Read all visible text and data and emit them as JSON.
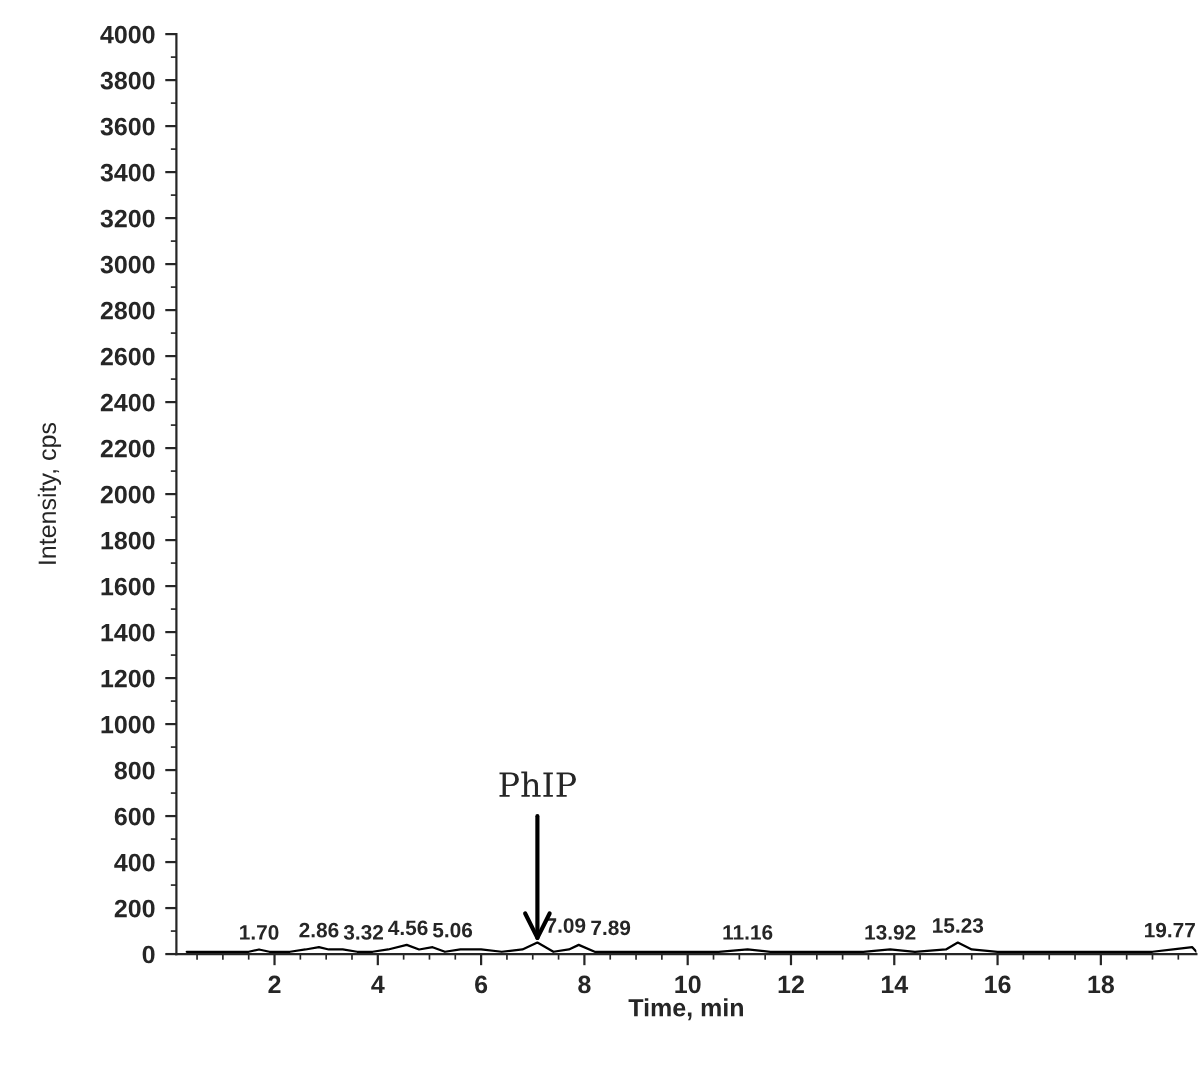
{
  "chart_data": {
    "type": "line",
    "xlabel": "Time, min",
    "ylabel": "Intensity, cps",
    "x": [
      0.3,
      0.8,
      1.2,
      1.5,
      1.7,
      1.9,
      2.3,
      2.6,
      2.86,
      3.05,
      3.32,
      3.6,
      3.9,
      4.2,
      4.56,
      4.8,
      5.06,
      5.3,
      5.6,
      6.0,
      6.4,
      6.8,
      7.09,
      7.4,
      7.7,
      7.89,
      8.2,
      8.8,
      9.4,
      10.0,
      10.6,
      11.16,
      11.6,
      12.2,
      12.8,
      13.4,
      13.92,
      14.4,
      15.0,
      15.23,
      15.5,
      16.0,
      16.6,
      17.2,
      17.8,
      18.4,
      19.0,
      19.4,
      19.77,
      19.85
    ],
    "series": [
      {
        "color": "#000000",
        "values": [
          10,
          10,
          10,
          10,
          20,
          10,
          10,
          20,
          30,
          20,
          20,
          10,
          10,
          20,
          40,
          20,
          30,
          10,
          20,
          20,
          10,
          20,
          50,
          10,
          20,
          40,
          10,
          10,
          10,
          10,
          10,
          20,
          10,
          10,
          10,
          10,
          20,
          10,
          20,
          50,
          20,
          10,
          10,
          10,
          10,
          10,
          10,
          20,
          30,
          10
        ]
      }
    ],
    "xlim": [
      0.1,
      19.85
    ],
    "ylim": [
      0,
      4000
    ],
    "xticks": [
      2,
      4,
      6,
      8,
      10,
      12,
      14,
      16,
      18
    ],
    "yticks": [
      0,
      200,
      400,
      600,
      800,
      1000,
      1200,
      1400,
      1600,
      1800,
      2000,
      2200,
      2400,
      2600,
      2800,
      3000,
      3200,
      3400,
      3600,
      3800,
      4000
    ],
    "grid": false,
    "legend": false,
    "annotations": [
      {
        "text": "1.70",
        "x": 1.7,
        "y": 20
      },
      {
        "text": "2.86",
        "x": 2.86,
        "y": 30
      },
      {
        "text": "3.32",
        "x": 3.32,
        "y": 20
      },
      {
        "text": "4.56",
        "x": 4.56,
        "y": 40
      },
      {
        "text": "5.06",
        "x": 5.06,
        "y": 30
      },
      {
        "text": "7.09",
        "x": 7.09,
        "y": 50
      },
      {
        "text": "7.89",
        "x": 7.89,
        "y": 40
      },
      {
        "text": "11.16",
        "x": 11.16,
        "y": 20
      },
      {
        "text": "13.92",
        "x": 13.92,
        "y": 20
      },
      {
        "text": "15.23",
        "x": 15.23,
        "y": 50
      },
      {
        "text": "19.77",
        "x": 19.77,
        "y": 30
      },
      {
        "text": "PhIP",
        "x": 7.09,
        "y": 50
      }
    ]
  }
}
